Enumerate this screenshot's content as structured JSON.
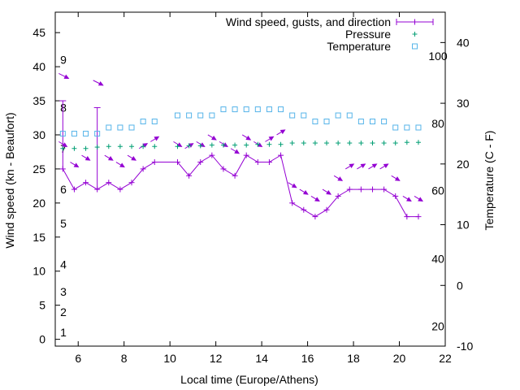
{
  "chart_data": {
    "type": "line",
    "xlabel": "Local time (Europe/Athens)",
    "ylabel": "Wind speed (kn - Beaufort)",
    "y2label": "Temperature (C - F)",
    "xlim": [
      5,
      22
    ],
    "ylim": [
      -1,
      48
    ],
    "y2lim": [
      -10,
      45
    ],
    "grid": false,
    "legend_position": "top-right",
    "x_ticks": [
      "6",
      "8",
      "10",
      "12",
      "14",
      "16",
      "18",
      "20",
      "22"
    ],
    "y_ticks": [
      "0",
      "5",
      "10",
      "15",
      "20",
      "25",
      "30",
      "35",
      "40",
      "45"
    ],
    "y2_ticks": [
      "-10",
      "0",
      "10",
      "20",
      "30",
      "40"
    ],
    "beaufort_scale": [
      {
        "label": "1",
        "y": 1
      },
      {
        "label": "2",
        "y": 4
      },
      {
        "label": "3",
        "y": 7
      },
      {
        "label": "4",
        "y": 11
      },
      {
        "label": "5",
        "y": 17
      },
      {
        "label": "6",
        "y": 22
      },
      {
        "label": "7",
        "y": 28
      },
      {
        "label": "8",
        "y": 34
      },
      {
        "label": "9",
        "y": 41
      }
    ],
    "fahrenheit_scale": [
      {
        "label": "20",
        "y2": -6.7
      },
      {
        "label": "40",
        "y2": 4.4
      },
      {
        "label": "60",
        "y2": 15.6
      },
      {
        "label": "80",
        "y2": 26.7
      },
      {
        "label": "100",
        "y2": 37.8
      }
    ],
    "series": [
      {
        "name": "Wind speed, gusts, and direction",
        "color": "#9400d3",
        "x": [
          5.33,
          5.83,
          6.33,
          6.83,
          7.33,
          7.83,
          8.33,
          8.83,
          9.33,
          10.33,
          10.83,
          11.33,
          11.83,
          12.33,
          12.83,
          13.33,
          13.83,
          14.33,
          14.83,
          15.33,
          15.83,
          16.33,
          16.83,
          17.33,
          17.83,
          18.33,
          18.83,
          19.33,
          19.83,
          20.33,
          20.83
        ],
        "values": [
          25,
          22,
          23,
          22,
          23,
          22,
          23,
          25,
          26,
          26,
          24,
          26,
          27,
          25,
          24,
          27,
          26,
          26,
          27,
          20,
          19,
          18,
          19,
          21,
          22,
          22,
          22,
          22,
          21,
          18,
          18
        ],
        "gusts": [
          {
            "x": 5.33,
            "y": 35
          },
          {
            "x": 6.83,
            "y": 34
          }
        ],
        "arrows": [
          {
            "x": 5.33,
            "y": 39,
            "dx": 12,
            "dy": 6
          },
          {
            "x": 6.83,
            "y": 38,
            "dx": 12,
            "dy": 6
          },
          {
            "x": 5.33,
            "y": 29,
            "dx": 10,
            "dy": 6
          },
          {
            "x": 5.83,
            "y": 26,
            "dx": 10,
            "dy": 6
          },
          {
            "x": 6.33,
            "y": 27,
            "dx": 10,
            "dy": 6
          },
          {
            "x": 7.33,
            "y": 27,
            "dx": 10,
            "dy": 6
          },
          {
            "x": 7.83,
            "y": 26,
            "dx": 10,
            "dy": 6
          },
          {
            "x": 8.33,
            "y": 27,
            "dx": 10,
            "dy": 6
          },
          {
            "x": 8.83,
            "y": 28,
            "dx": 10,
            "dy": -6
          },
          {
            "x": 9.33,
            "y": 29,
            "dx": 10,
            "dy": -6
          },
          {
            "x": 10.33,
            "y": 29,
            "dx": 10,
            "dy": 6
          },
          {
            "x": 10.83,
            "y": 28,
            "dx": 10,
            "dy": -6
          },
          {
            "x": 11.33,
            "y": 29,
            "dx": 10,
            "dy": 6
          },
          {
            "x": 11.83,
            "y": 30,
            "dx": 10,
            "dy": 6
          },
          {
            "x": 12.33,
            "y": 29,
            "dx": 10,
            "dy": 6
          },
          {
            "x": 12.83,
            "y": 28,
            "dx": 10,
            "dy": 6
          },
          {
            "x": 13.33,
            "y": 30,
            "dx": 10,
            "dy": 6
          },
          {
            "x": 13.83,
            "y": 29,
            "dx": 10,
            "dy": 6
          },
          {
            "x": 14.33,
            "y": 29,
            "dx": 10,
            "dy": -6
          },
          {
            "x": 14.83,
            "y": 30,
            "dx": 10,
            "dy": -6
          },
          {
            "x": 15.33,
            "y": 23,
            "dx": 10,
            "dy": 6
          },
          {
            "x": 15.83,
            "y": 22,
            "dx": 10,
            "dy": 6
          },
          {
            "x": 16.33,
            "y": 21,
            "dx": 10,
            "dy": 6
          },
          {
            "x": 16.83,
            "y": 22,
            "dx": 10,
            "dy": 6
          },
          {
            "x": 17.33,
            "y": 24,
            "dx": 10,
            "dy": 6
          },
          {
            "x": 17.83,
            "y": 25,
            "dx": 10,
            "dy": -6
          },
          {
            "x": 18.33,
            "y": 25,
            "dx": 10,
            "dy": -6
          },
          {
            "x": 18.83,
            "y": 25,
            "dx": 10,
            "dy": -6
          },
          {
            "x": 19.33,
            "y": 25,
            "dx": 10,
            "dy": -6
          },
          {
            "x": 19.83,
            "y": 24,
            "dx": 10,
            "dy": 6
          },
          {
            "x": 20.33,
            "y": 21,
            "dx": 10,
            "dy": 6
          },
          {
            "x": 20.83,
            "y": 21,
            "dx": 10,
            "dy": 6
          }
        ]
      },
      {
        "name": "Pressure",
        "color": "#009e73",
        "axis": "y",
        "x": [
          5.33,
          5.83,
          6.33,
          6.83,
          7.33,
          7.83,
          8.33,
          8.83,
          9.33,
          10.33,
          10.83,
          11.33,
          11.83,
          12.33,
          12.83,
          13.33,
          13.83,
          14.33,
          14.83,
          15.33,
          15.83,
          16.33,
          16.83,
          17.33,
          17.83,
          18.33,
          18.83,
          19.33,
          19.83,
          20.33,
          20.83
        ],
        "values": [
          28,
          28,
          28,
          28.2,
          28.3,
          28.3,
          28.3,
          28.3,
          28.3,
          28.3,
          28.4,
          28.4,
          28.5,
          28.5,
          28.5,
          28.5,
          28.6,
          28.6,
          28.6,
          28.8,
          28.8,
          28.8,
          28.8,
          28.8,
          28.8,
          28.8,
          28.8,
          28.8,
          28.8,
          28.9,
          28.9
        ]
      },
      {
        "name": "Temperature",
        "color": "#56b4e9",
        "axis": "y2",
        "x": [
          5.33,
          5.83,
          6.33,
          6.83,
          7.33,
          7.83,
          8.33,
          8.83,
          9.33,
          10.33,
          10.83,
          11.33,
          11.83,
          12.33,
          12.83,
          13.33,
          13.83,
          14.33,
          14.83,
          15.33,
          15.83,
          16.33,
          16.83,
          17.33,
          17.83,
          18.33,
          18.83,
          19.33,
          19.83,
          20.33,
          20.83
        ],
        "values": [
          25,
          25,
          25,
          25,
          26,
          26,
          26,
          27,
          27,
          28,
          28,
          28,
          28,
          29,
          29,
          29,
          29,
          29,
          29,
          28,
          28,
          27,
          27,
          28,
          28,
          27,
          27,
          27,
          26,
          26,
          26
        ]
      }
    ]
  }
}
